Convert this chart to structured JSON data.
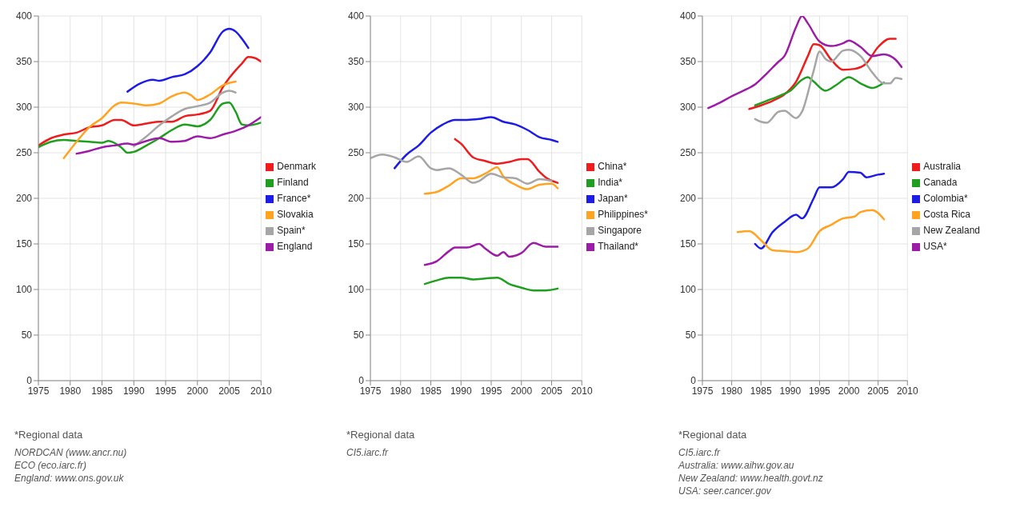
{
  "chart_data": [
    {
      "type": "line",
      "xlim": [
        1975,
        2010
      ],
      "xticks": [
        1975,
        1980,
        1985,
        1990,
        1995,
        2000,
        2005,
        2010
      ],
      "ylim": [
        0,
        400
      ],
      "yticks": [
        0,
        50,
        100,
        150,
        200,
        250,
        300,
        350,
        400
      ],
      "grid": true,
      "legend": "right",
      "annotations": [
        "*Regional data",
        "NORDCAN (www.ancr.nu)",
        "ECO (eco.iarc.fr)",
        "England: www.ons.gov.uk"
      ],
      "series": [
        {
          "name": "Denmark",
          "color": "#ee1c1c",
          "x": [
            1975,
            1977,
            1979,
            1981,
            1983,
            1985,
            1987,
            1988,
            1990,
            1992,
            1994,
            1996,
            1998,
            2000,
            2002,
            2004,
            2005,
            2007,
            2008,
            2009,
            2010
          ],
          "values": [
            258,
            266,
            270,
            272,
            278,
            280,
            286,
            286,
            280,
            282,
            284,
            284,
            290,
            292,
            296,
            322,
            332,
            348,
            355,
            354,
            350
          ]
        },
        {
          "name": "Finland",
          "color": "#1f9e1f",
          "x": [
            1975,
            1977,
            1979,
            1981,
            1983,
            1985,
            1986,
            1988,
            1989,
            1990,
            1992,
            1994,
            1996,
            1998,
            2000,
            2002,
            2004,
            2005,
            2006,
            2007,
            2008,
            2010
          ],
          "values": [
            256,
            262,
            264,
            263,
            262,
            261,
            263,
            256,
            250,
            251,
            258,
            266,
            275,
            281,
            279,
            286,
            304,
            305,
            295,
            281,
            280,
            283
          ]
        },
        {
          "name": "France*",
          "color": "#1c1ce6",
          "x": [
            1989,
            1991,
            1993,
            1994,
            1996,
            1998,
            2000,
            2002,
            2004,
            2005,
            2006,
            2007,
            2008
          ],
          "values": [
            317,
            326,
            330,
            329,
            333,
            336,
            345,
            360,
            383,
            386,
            383,
            375,
            365
          ]
        },
        {
          "name": "Slovakia",
          "color": "#ffa321",
          "x": [
            1979,
            1981,
            1983,
            1985,
            1987,
            1988,
            1990,
            1992,
            1994,
            1996,
            1998,
            1999,
            2000,
            2002,
            2004,
            2006
          ],
          "values": [
            244,
            262,
            278,
            288,
            302,
            305,
            304,
            302,
            304,
            312,
            316,
            313,
            308,
            314,
            324,
            328
          ]
        },
        {
          "name": "Spain*",
          "color": "#a6a6a6",
          "x": [
            1990,
            1992,
            1994,
            1996,
            1998,
            2000,
            2002,
            2004,
            2005,
            2006
          ],
          "values": [
            257,
            268,
            280,
            290,
            298,
            301,
            305,
            316,
            318,
            316
          ]
        },
        {
          "name": "England",
          "color": "#9c1ca8",
          "x": [
            1981,
            1983,
            1985,
            1987,
            1989,
            1990,
            1992,
            1994,
            1996,
            1998,
            2000,
            2002,
            2004,
            2006,
            2008,
            2010
          ],
          "values": [
            249,
            252,
            256,
            258,
            260,
            259,
            263,
            266,
            262,
            263,
            268,
            266,
            270,
            274,
            280,
            289
          ]
        }
      ]
    },
    {
      "type": "line",
      "xlim": [
        1975,
        2010
      ],
      "xticks": [
        1975,
        1980,
        1985,
        1990,
        1995,
        2000,
        2005,
        2010
      ],
      "ylim": [
        0,
        400
      ],
      "yticks": [
        0,
        50,
        100,
        150,
        200,
        250,
        300,
        350,
        400
      ],
      "grid": true,
      "legend": "right",
      "annotations": [
        "*Regional data",
        "CI5.iarc.fr"
      ],
      "series": [
        {
          "name": "China*",
          "color": "#ee1c1c",
          "x": [
            1989,
            1990,
            1992,
            1994,
            1996,
            1998,
            2000,
            2001,
            2003,
            2004,
            2006
          ],
          "values": [
            265,
            260,
            245,
            241,
            238,
            240,
            243,
            243,
            229,
            223,
            217
          ]
        },
        {
          "name": "India*",
          "color": "#1f9e1f",
          "x": [
            1984,
            1986,
            1988,
            1990,
            1992,
            1994,
            1996,
            1998,
            2000,
            2002,
            2004,
            2006
          ],
          "values": [
            106,
            110,
            113,
            113,
            111,
            112,
            113,
            106,
            102,
            99,
            99,
            101
          ]
        },
        {
          "name": "Japan*",
          "color": "#1c1ce6",
          "x": [
            1979,
            1981,
            1983,
            1985,
            1987,
            1989,
            1991,
            1993,
            1995,
            1997,
            1999,
            2001,
            2003,
            2005,
            2006
          ],
          "values": [
            233,
            248,
            258,
            272,
            281,
            286,
            286,
            287,
            289,
            284,
            281,
            275,
            267,
            264,
            262
          ]
        },
        {
          "name": "Philippines*",
          "color": "#ffa321",
          "x": [
            1984,
            1986,
            1988,
            1990,
            1992,
            1994,
            1996,
            1997,
            1999,
            2001,
            2003,
            2005,
            2006
          ],
          "values": [
            205,
            207,
            214,
            222,
            222,
            227,
            234,
            224,
            215,
            210,
            215,
            216,
            211
          ]
        },
        {
          "name": "Singapore",
          "color": "#a6a6a6",
          "x": [
            1975,
            1977,
            1979,
            1981,
            1983,
            1985,
            1986,
            1988,
            1990,
            1992,
            1993,
            1995,
            1997,
            1999,
            2001,
            2003,
            2005
          ],
          "values": [
            244,
            248,
            245,
            240,
            246,
            233,
            231,
            233,
            226,
            217,
            219,
            227,
            223,
            222,
            216,
            221,
            219
          ]
        },
        {
          "name": "Thailand*",
          "color": "#9c1ca8",
          "x": [
            1984,
            1986,
            1988,
            1989,
            1991,
            1993,
            1994,
            1996,
            1997,
            1998,
            2000,
            2002,
            2004,
            2006
          ],
          "values": [
            127,
            131,
            142,
            146,
            146,
            150,
            145,
            137,
            141,
            136,
            140,
            151,
            147,
            147
          ]
        }
      ]
    },
    {
      "type": "line",
      "xlim": [
        1975,
        2010
      ],
      "xticks": [
        1975,
        1980,
        1985,
        1990,
        1995,
        2000,
        2005,
        2010
      ],
      "ylim": [
        0,
        400
      ],
      "yticks": [
        0,
        50,
        100,
        150,
        200,
        250,
        300,
        350,
        400
      ],
      "grid": true,
      "legend": "right",
      "annotations": [
        "*Regional data",
        "CI5.iarc.fr",
        "Australia: www.aihw.gov.au",
        "New Zealand: www.health.govt.nz",
        "USA: seer.cancer.gov"
      ],
      "series": [
        {
          "name": "Australia",
          "color": "#ee1c1c",
          "x": [
            1983,
            1985,
            1987,
            1989,
            1991,
            1993,
            1994,
            1995,
            1997,
            1999,
            2001,
            2003,
            2005,
            2007,
            2008
          ],
          "values": [
            298,
            302,
            307,
            314,
            328,
            356,
            369,
            368,
            352,
            341,
            342,
            348,
            366,
            375,
            375
          ]
        },
        {
          "name": "Canada",
          "color": "#1f9e1f",
          "x": [
            1984,
            1986,
            1988,
            1990,
            1992,
            1993,
            1994,
            1996,
            1998,
            2000,
            2002,
            2004,
            2006
          ],
          "values": [
            302,
            307,
            312,
            318,
            330,
            333,
            328,
            318,
            325,
            333,
            326,
            321,
            327
          ]
        },
        {
          "name": "Colombia*",
          "color": "#1c1ce6",
          "x": [
            1984,
            1985,
            1987,
            1989,
            1991,
            1992,
            1994,
            1995,
            1997,
            1999,
            2000,
            2002,
            2003,
            2005,
            2006
          ],
          "values": [
            150,
            145,
            163,
            174,
            182,
            178,
            200,
            212,
            212,
            221,
            229,
            228,
            223,
            226,
            227
          ]
        },
        {
          "name": "Costa Rica",
          "color": "#ffa321",
          "x": [
            1981,
            1983,
            1985,
            1987,
            1989,
            1991,
            1993,
            1995,
            1997,
            1999,
            2001,
            2002,
            2004,
            2006
          ],
          "values": [
            163,
            164,
            154,
            143,
            142,
            141,
            145,
            164,
            171,
            178,
            180,
            185,
            187,
            177
          ]
        },
        {
          "name": "New Zealand",
          "color": "#a6a6a6",
          "x": [
            1984,
            1985,
            1986,
            1988,
            1989,
            1991,
            1992,
            1994,
            1995,
            1996,
            1997,
            1999,
            2000,
            2002,
            2004,
            2006,
            2007,
            2008,
            2009
          ],
          "values": [
            287,
            284,
            283,
            295,
            296,
            288,
            295,
            340,
            361,
            353,
            350,
            362,
            363,
            356,
            338,
            326,
            326,
            332,
            331
          ]
        },
        {
          "name": "USA*",
          "color": "#9c1ca8",
          "x": [
            1976,
            1978,
            1980,
            1982,
            1984,
            1986,
            1988,
            1989,
            1991,
            1992,
            1993,
            1995,
            1997,
            1999,
            2000,
            2002,
            2004,
            2006,
            2008,
            2009
          ],
          "values": [
            299,
            305,
            312,
            318,
            325,
            337,
            350,
            356,
            388,
            400,
            392,
            372,
            367,
            370,
            373,
            366,
            356,
            358,
            352,
            344
          ]
        }
      ]
    }
  ]
}
